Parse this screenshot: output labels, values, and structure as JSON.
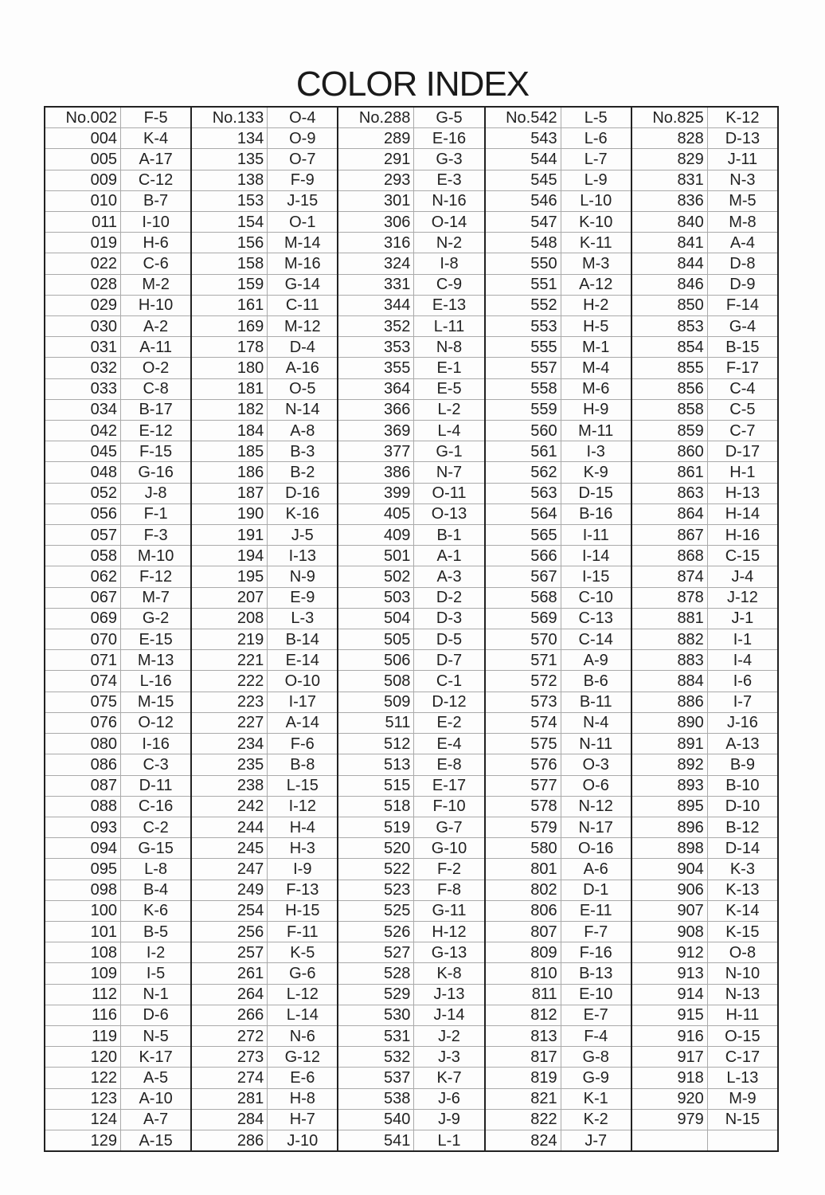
{
  "title": "COLOR INDEX",
  "groups": [
    [
      [
        "No.002",
        "F-5"
      ],
      [
        "004",
        "K-4"
      ],
      [
        "005",
        "A-17"
      ],
      [
        "009",
        "C-12"
      ],
      [
        "010",
        "B-7"
      ],
      [
        "011",
        "I-10"
      ],
      [
        "019",
        "H-6"
      ],
      [
        "022",
        "C-6"
      ],
      [
        "028",
        "M-2"
      ],
      [
        "029",
        "H-10"
      ],
      [
        "030",
        "A-2"
      ],
      [
        "031",
        "A-11"
      ],
      [
        "032",
        "O-2"
      ],
      [
        "033",
        "C-8"
      ],
      [
        "034",
        "B-17"
      ],
      [
        "042",
        "E-12"
      ],
      [
        "045",
        "F-15"
      ],
      [
        "048",
        "G-16"
      ],
      [
        "052",
        "J-8"
      ],
      [
        "056",
        "F-1"
      ],
      [
        "057",
        "F-3"
      ],
      [
        "058",
        "M-10"
      ],
      [
        "062",
        "F-12"
      ],
      [
        "067",
        "M-7"
      ],
      [
        "069",
        "G-2"
      ],
      [
        "070",
        "E-15"
      ],
      [
        "071",
        "M-13"
      ],
      [
        "074",
        "L-16"
      ],
      [
        "075",
        "M-15"
      ],
      [
        "076",
        "O-12"
      ],
      [
        "080",
        "I-16"
      ],
      [
        "086",
        "C-3"
      ],
      [
        "087",
        "D-11"
      ],
      [
        "088",
        "C-16"
      ],
      [
        "093",
        "C-2"
      ],
      [
        "094",
        "G-15"
      ],
      [
        "095",
        "L-8"
      ],
      [
        "098",
        "B-4"
      ],
      [
        "100",
        "K-6"
      ],
      [
        "101",
        "B-5"
      ],
      [
        "108",
        "I-2"
      ],
      [
        "109",
        "I-5"
      ],
      [
        "112",
        "N-1"
      ],
      [
        "116",
        "D-6"
      ],
      [
        "119",
        "N-5"
      ],
      [
        "120",
        "K-17"
      ],
      [
        "122",
        "A-5"
      ],
      [
        "123",
        "A-10"
      ],
      [
        "124",
        "A-7"
      ],
      [
        "129",
        "A-15"
      ]
    ],
    [
      [
        "No.133",
        "O-4"
      ],
      [
        "134",
        "O-9"
      ],
      [
        "135",
        "O-7"
      ],
      [
        "138",
        "F-9"
      ],
      [
        "153",
        "J-15"
      ],
      [
        "154",
        "O-1"
      ],
      [
        "156",
        "M-14"
      ],
      [
        "158",
        "M-16"
      ],
      [
        "159",
        "G-14"
      ],
      [
        "161",
        "C-11"
      ],
      [
        "169",
        "M-12"
      ],
      [
        "178",
        "D-4"
      ],
      [
        "180",
        "A-16"
      ],
      [
        "181",
        "O-5"
      ],
      [
        "182",
        "N-14"
      ],
      [
        "184",
        "A-8"
      ],
      [
        "185",
        "B-3"
      ],
      [
        "186",
        "B-2"
      ],
      [
        "187",
        "D-16"
      ],
      [
        "190",
        "K-16"
      ],
      [
        "191",
        "J-5"
      ],
      [
        "194",
        "I-13"
      ],
      [
        "195",
        "N-9"
      ],
      [
        "207",
        "E-9"
      ],
      [
        "208",
        "L-3"
      ],
      [
        "219",
        "B-14"
      ],
      [
        "221",
        "E-14"
      ],
      [
        "222",
        "O-10"
      ],
      [
        "223",
        "I-17"
      ],
      [
        "227",
        "A-14"
      ],
      [
        "234",
        "F-6"
      ],
      [
        "235",
        "B-8"
      ],
      [
        "238",
        "L-15"
      ],
      [
        "242",
        "I-12"
      ],
      [
        "244",
        "H-4"
      ],
      [
        "245",
        "H-3"
      ],
      [
        "247",
        "I-9"
      ],
      [
        "249",
        "F-13"
      ],
      [
        "254",
        "H-15"
      ],
      [
        "256",
        "F-11"
      ],
      [
        "257",
        "K-5"
      ],
      [
        "261",
        "G-6"
      ],
      [
        "264",
        "L-12"
      ],
      [
        "266",
        "L-14"
      ],
      [
        "272",
        "N-6"
      ],
      [
        "273",
        "G-12"
      ],
      [
        "274",
        "E-6"
      ],
      [
        "281",
        "H-8"
      ],
      [
        "284",
        "H-7"
      ],
      [
        "286",
        "J-10"
      ]
    ],
    [
      [
        "No.288",
        "G-5"
      ],
      [
        "289",
        "E-16"
      ],
      [
        "291",
        "G-3"
      ],
      [
        "293",
        "E-3"
      ],
      [
        "301",
        "N-16"
      ],
      [
        "306",
        "O-14"
      ],
      [
        "316",
        "N-2"
      ],
      [
        "324",
        "I-8"
      ],
      [
        "331",
        "C-9"
      ],
      [
        "344",
        "E-13"
      ],
      [
        "352",
        "L-11"
      ],
      [
        "353",
        "N-8"
      ],
      [
        "355",
        "E-1"
      ],
      [
        "364",
        "E-5"
      ],
      [
        "366",
        "L-2"
      ],
      [
        "369",
        "L-4"
      ],
      [
        "377",
        "G-1"
      ],
      [
        "386",
        "N-7"
      ],
      [
        "399",
        "O-11"
      ],
      [
        "405",
        "O-13"
      ],
      [
        "409",
        "B-1"
      ],
      [
        "501",
        "A-1"
      ],
      [
        "502",
        "A-3"
      ],
      [
        "503",
        "D-2"
      ],
      [
        "504",
        "D-3"
      ],
      [
        "505",
        "D-5"
      ],
      [
        "506",
        "D-7"
      ],
      [
        "508",
        "C-1"
      ],
      [
        "509",
        "D-12"
      ],
      [
        "511",
        "E-2"
      ],
      [
        "512",
        "E-4"
      ],
      [
        "513",
        "E-8"
      ],
      [
        "515",
        "E-17"
      ],
      [
        "518",
        "F-10"
      ],
      [
        "519",
        "G-7"
      ],
      [
        "520",
        "G-10"
      ],
      [
        "522",
        "F-2"
      ],
      [
        "523",
        "F-8"
      ],
      [
        "525",
        "G-11"
      ],
      [
        "526",
        "H-12"
      ],
      [
        "527",
        "G-13"
      ],
      [
        "528",
        "K-8"
      ],
      [
        "529",
        "J-13"
      ],
      [
        "530",
        "J-14"
      ],
      [
        "531",
        "J-2"
      ],
      [
        "532",
        "J-3"
      ],
      [
        "537",
        "K-7"
      ],
      [
        "538",
        "J-6"
      ],
      [
        "540",
        "J-9"
      ],
      [
        "541",
        "L-1"
      ]
    ],
    [
      [
        "No.542",
        "L-5"
      ],
      [
        "543",
        "L-6"
      ],
      [
        "544",
        "L-7"
      ],
      [
        "545",
        "L-9"
      ],
      [
        "546",
        "L-10"
      ],
      [
        "547",
        "K-10"
      ],
      [
        "548",
        "K-11"
      ],
      [
        "550",
        "M-3"
      ],
      [
        "551",
        "A-12"
      ],
      [
        "552",
        "H-2"
      ],
      [
        "553",
        "H-5"
      ],
      [
        "555",
        "M-1"
      ],
      [
        "557",
        "M-4"
      ],
      [
        "558",
        "M-6"
      ],
      [
        "559",
        "H-9"
      ],
      [
        "560",
        "M-11"
      ],
      [
        "561",
        "I-3"
      ],
      [
        "562",
        "K-9"
      ],
      [
        "563",
        "D-15"
      ],
      [
        "564",
        "B-16"
      ],
      [
        "565",
        "I-11"
      ],
      [
        "566",
        "I-14"
      ],
      [
        "567",
        "I-15"
      ],
      [
        "568",
        "C-10"
      ],
      [
        "569",
        "C-13"
      ],
      [
        "570",
        "C-14"
      ],
      [
        "571",
        "A-9"
      ],
      [
        "572",
        "B-6"
      ],
      [
        "573",
        "B-11"
      ],
      [
        "574",
        "N-4"
      ],
      [
        "575",
        "N-11"
      ],
      [
        "576",
        "O-3"
      ],
      [
        "577",
        "O-6"
      ],
      [
        "578",
        "N-12"
      ],
      [
        "579",
        "N-17"
      ],
      [
        "580",
        "O-16"
      ],
      [
        "801",
        "A-6"
      ],
      [
        "802",
        "D-1"
      ],
      [
        "806",
        "E-11"
      ],
      [
        "807",
        "F-7"
      ],
      [
        "809",
        "F-16"
      ],
      [
        "810",
        "B-13"
      ],
      [
        "811",
        "E-10"
      ],
      [
        "812",
        "E-7"
      ],
      [
        "813",
        "F-4"
      ],
      [
        "817",
        "G-8"
      ],
      [
        "819",
        "G-9"
      ],
      [
        "821",
        "K-1"
      ],
      [
        "822",
        "K-2"
      ],
      [
        "824",
        "J-7"
      ]
    ],
    [
      [
        "No.825",
        "K-12"
      ],
      [
        "828",
        "D-13"
      ],
      [
        "829",
        "J-11"
      ],
      [
        "831",
        "N-3"
      ],
      [
        "836",
        "M-5"
      ],
      [
        "840",
        "M-8"
      ],
      [
        "841",
        "A-4"
      ],
      [
        "844",
        "D-8"
      ],
      [
        "846",
        "D-9"
      ],
      [
        "850",
        "F-14"
      ],
      [
        "853",
        "G-4"
      ],
      [
        "854",
        "B-15"
      ],
      [
        "855",
        "F-17"
      ],
      [
        "856",
        "C-4"
      ],
      [
        "858",
        "C-5"
      ],
      [
        "859",
        "C-7"
      ],
      [
        "860",
        "D-17"
      ],
      [
        "861",
        "H-1"
      ],
      [
        "863",
        "H-13"
      ],
      [
        "864",
        "H-14"
      ],
      [
        "867",
        "H-16"
      ],
      [
        "868",
        "C-15"
      ],
      [
        "874",
        "J-4"
      ],
      [
        "878",
        "J-12"
      ],
      [
        "881",
        "J-1"
      ],
      [
        "882",
        "I-1"
      ],
      [
        "883",
        "I-4"
      ],
      [
        "884",
        "I-6"
      ],
      [
        "886",
        "I-7"
      ],
      [
        "890",
        "J-16"
      ],
      [
        "891",
        "A-13"
      ],
      [
        "892",
        "B-9"
      ],
      [
        "893",
        "B-10"
      ],
      [
        "895",
        "D-10"
      ],
      [
        "896",
        "B-12"
      ],
      [
        "898",
        "D-14"
      ],
      [
        "904",
        "K-3"
      ],
      [
        "906",
        "K-13"
      ],
      [
        "907",
        "K-14"
      ],
      [
        "908",
        "K-15"
      ],
      [
        "912",
        "O-8"
      ],
      [
        "913",
        "N-10"
      ],
      [
        "914",
        "N-13"
      ],
      [
        "915",
        "H-11"
      ],
      [
        "916",
        "O-15"
      ],
      [
        "917",
        "C-17"
      ],
      [
        "918",
        "L-13"
      ],
      [
        "920",
        "M-9"
      ],
      [
        "979",
        "N-15"
      ],
      [
        "",
        ""
      ]
    ]
  ]
}
